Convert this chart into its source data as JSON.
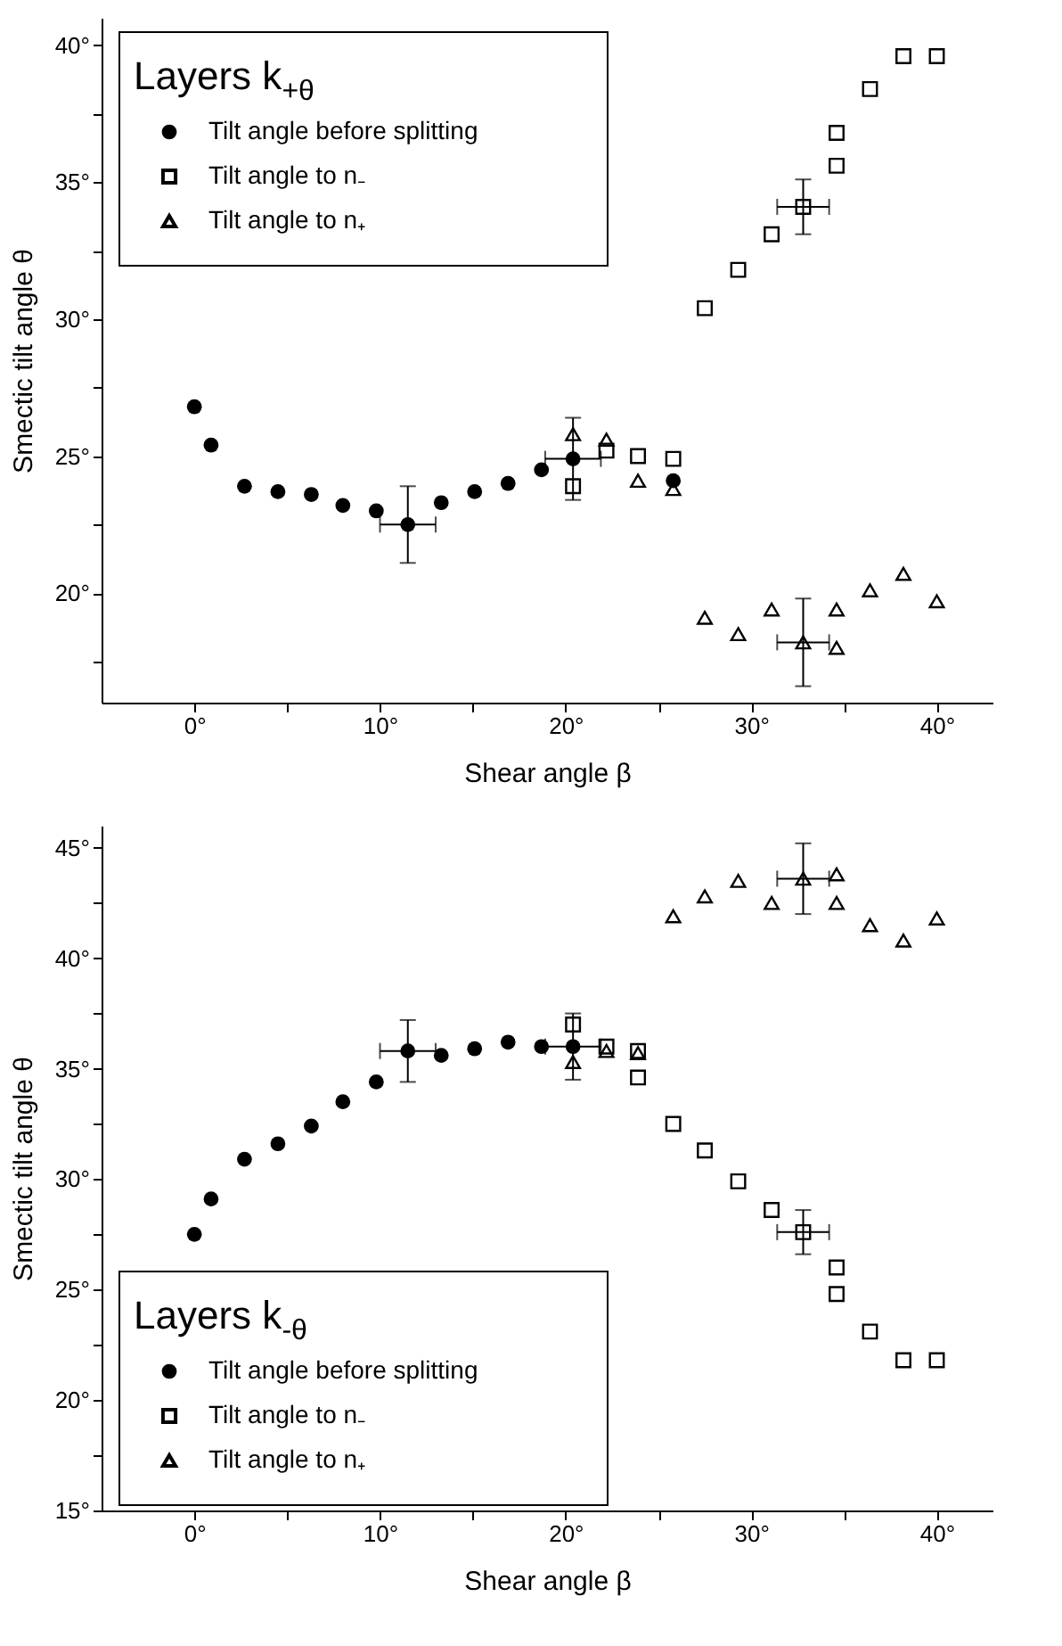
{
  "chart_data": [
    {
      "type": "scatter",
      "legend_title": "Layers k$_{+θ}$",
      "xlabel": "Shear angle β",
      "ylabel": "Smectic tilt angle θ",
      "legend": "top left",
      "grid": false,
      "xlim": [
        -5,
        43
      ],
      "ylim": [
        16,
        41
      ],
      "xticks": [
        {
          "value": 0,
          "label": "0°"
        },
        {
          "value": 5,
          "label": null
        },
        {
          "value": 10,
          "label": "10°"
        },
        {
          "value": 15,
          "label": null
        },
        {
          "value": 20,
          "label": "20°"
        },
        {
          "value": 25,
          "label": null
        },
        {
          "value": 30,
          "label": "30°"
        },
        {
          "value": 35,
          "label": null
        },
        {
          "value": 40,
          "label": "40°"
        }
      ],
      "yticks": [
        {
          "value": 17.5,
          "label": null
        },
        {
          "value": 20,
          "label": "20°"
        },
        {
          "value": 22.5,
          "label": null
        },
        {
          "value": 25,
          "label": "25°"
        },
        {
          "value": 27.5,
          "label": null
        },
        {
          "value": 30,
          "label": "30°"
        },
        {
          "value": 32.5,
          "label": null
        },
        {
          "value": 35,
          "label": "35°"
        },
        {
          "value": 37.5,
          "label": null
        },
        {
          "value": 40,
          "label": "40°"
        }
      ],
      "series": [
        {
          "name": "Tilt angle before splitting",
          "color": "#000000",
          "marker": "circle",
          "x": [
            0,
            0.9,
            2.7,
            4.5,
            6.3,
            8.0,
            9.8,
            11.5,
            13.3,
            15.1,
            16.9,
            18.7,
            20.4,
            22.2,
            25.8
          ],
          "values": [
            26.8,
            25.4,
            23.9,
            23.7,
            23.6,
            23.2,
            23.0,
            22.5,
            23.3,
            23.7,
            24.0,
            24.5,
            24.9,
            null,
            24.1
          ],
          "errors": [
            null,
            null,
            null,
            null,
            null,
            null,
            null,
            1.4,
            null,
            null,
            null,
            null,
            1.5,
            null,
            null
          ],
          "xerrors": [
            null,
            null,
            null,
            null,
            null,
            null,
            null,
            1.5,
            null,
            null,
            null,
            null,
            1.5,
            null,
            null
          ]
        },
        {
          "name": "Tilt angle to n₋",
          "color": "#000000",
          "marker": "square",
          "x": [
            20.4,
            22.2,
            23.9,
            25.8,
            27.5,
            29.3,
            31.1,
            32.8,
            34.6,
            34.6,
            36.4,
            38.2,
            40.0
          ],
          "values": [
            23.9,
            25.2,
            25.0,
            24.9,
            30.4,
            31.8,
            33.1,
            34.1,
            35.6,
            36.8,
            38.4,
            39.6,
            39.6
          ],
          "errors": [
            null,
            null,
            null,
            null,
            null,
            null,
            null,
            1.0,
            null,
            null,
            null,
            null,
            null
          ],
          "xerrors": [
            null,
            null,
            null,
            null,
            null,
            null,
            null,
            1.4,
            null,
            null,
            null,
            null,
            null
          ]
        },
        {
          "name": "Tilt angle to n₊",
          "color": "#000000",
          "marker": "triangle",
          "x": [
            20.4,
            22.2,
            23.9,
            25.8,
            27.5,
            29.3,
            31.1,
            32.8,
            34.6,
            34.6,
            36.4,
            38.2,
            40.0
          ],
          "values": [
            25.8,
            25.6,
            24.1,
            23.8,
            19.1,
            18.5,
            19.4,
            18.2,
            19.4,
            18.0,
            20.1,
            20.7,
            19.7
          ],
          "errors": [
            null,
            null,
            null,
            null,
            null,
            null,
            null,
            1.6,
            null,
            null,
            null,
            null,
            null
          ],
          "xerrors": [
            null,
            null,
            null,
            null,
            null,
            null,
            null,
            1.4,
            null,
            null,
            null,
            null,
            null
          ]
        }
      ]
    },
    {
      "type": "scatter",
      "legend_title": "Layers k$_{-θ}$",
      "xlabel": "Shear angle β",
      "ylabel": "Smectic tilt angle θ",
      "legend": "bottom left",
      "grid": false,
      "xlim": [
        -5,
        43
      ],
      "ylim": [
        15,
        46
      ],
      "xticks": [
        {
          "value": 0,
          "label": "0°"
        },
        {
          "value": 5,
          "label": null
        },
        {
          "value": 10,
          "label": "10°"
        },
        {
          "value": 15,
          "label": null
        },
        {
          "value": 20,
          "label": "20°"
        },
        {
          "value": 25,
          "label": null
        },
        {
          "value": 30,
          "label": "30°"
        },
        {
          "value": 35,
          "label": null
        },
        {
          "value": 40,
          "label": "40°"
        }
      ],
      "yticks": [
        {
          "value": 15,
          "label": "15°"
        },
        {
          "value": 17.5,
          "label": null
        },
        {
          "value": 20,
          "label": "20°"
        },
        {
          "value": 22.5,
          "label": null
        },
        {
          "value": 25,
          "label": "25°"
        },
        {
          "value": 27.5,
          "label": null
        },
        {
          "value": 30,
          "label": "30°"
        },
        {
          "value": 32.5,
          "label": null
        },
        {
          "value": 35,
          "label": "35°"
        },
        {
          "value": 37.5,
          "label": null
        },
        {
          "value": 40,
          "label": "40°"
        },
        {
          "value": 42.5,
          "label": null
        },
        {
          "value": 45,
          "label": "45°"
        }
      ],
      "series": [
        {
          "name": "Tilt angle before splitting",
          "color": "#000000",
          "marker": "circle",
          "x": [
            0,
            0.9,
            2.7,
            4.5,
            6.3,
            8.0,
            9.8,
            11.5,
            13.3,
            15.1,
            16.9,
            18.7,
            20.4
          ],
          "values": [
            27.5,
            29.1,
            30.9,
            31.6,
            32.4,
            33.5,
            34.4,
            35.8,
            35.6,
            35.9,
            36.2,
            36.0,
            36.0
          ],
          "errors": [
            null,
            null,
            null,
            null,
            null,
            null,
            null,
            1.4,
            null,
            null,
            null,
            null,
            1.5
          ],
          "xerrors": [
            null,
            null,
            null,
            null,
            null,
            null,
            null,
            1.5,
            null,
            null,
            null,
            null,
            1.5
          ]
        },
        {
          "name": "Tilt angle to n₋",
          "color": "#000000",
          "marker": "square",
          "x": [
            20.4,
            22.2,
            23.9,
            23.9,
            25.8,
            27.5,
            29.3,
            31.1,
            32.8,
            34.6,
            34.6,
            36.4,
            38.2,
            40.0
          ],
          "values": [
            37.0,
            36.0,
            35.8,
            34.6,
            32.5,
            31.3,
            29.9,
            28.6,
            27.6,
            26.0,
            24.8,
            23.1,
            21.8,
            21.8
          ],
          "errors": [
            null,
            null,
            null,
            null,
            null,
            null,
            null,
            null,
            1.0,
            null,
            null,
            null,
            null,
            null
          ],
          "xerrors": [
            null,
            null,
            null,
            null,
            null,
            null,
            null,
            null,
            1.4,
            null,
            null,
            null,
            null,
            null
          ]
        },
        {
          "name": "Tilt angle to n₊",
          "color": "#000000",
          "marker": "triangle",
          "x": [
            20.4,
            22.2,
            23.9,
            25.8,
            27.5,
            29.3,
            31.1,
            32.8,
            34.6,
            34.6,
            36.4,
            38.2,
            40.0
          ],
          "values": [
            35.3,
            35.8,
            35.7,
            41.9,
            42.8,
            43.5,
            42.5,
            43.6,
            43.8,
            42.5,
            41.5,
            40.8,
            41.8
          ],
          "errors": [
            null,
            null,
            null,
            null,
            null,
            null,
            null,
            1.6,
            null,
            null,
            null,
            null,
            null
          ],
          "xerrors": [
            null,
            null,
            null,
            null,
            null,
            null,
            null,
            1.4,
            null,
            null,
            null,
            null,
            null
          ]
        }
      ]
    }
  ]
}
